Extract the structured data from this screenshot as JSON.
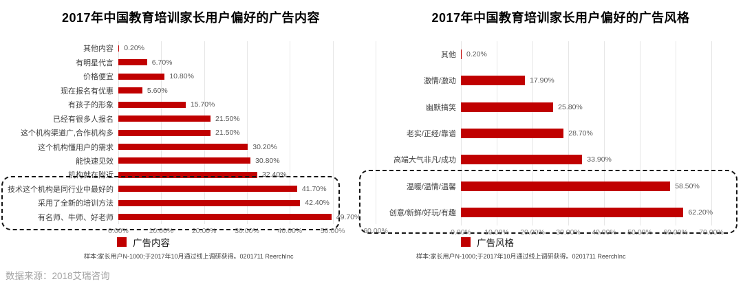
{
  "source_note": "数据来源：2018艾瑞咨询",
  "colors": {
    "bar": "#c00000",
    "gridline": "#e6e6e6",
    "highlight_border": "#141414"
  },
  "chart_data": [
    {
      "type": "bar",
      "orientation": "horizontal",
      "title": "2017年中国教育培训家长用户偏好的广告内容",
      "legend": "广告内容",
      "categories": [
        "其他内容",
        "有明星代言",
        "价格便宜",
        "现在报名有优惠",
        "有孩子的形象",
        "已经有很多人报名",
        "这个机构渠道广,合作机构多",
        "这个机构懂用户的需求",
        "能快速见效",
        "机构就在附近",
        "技术这个机构是同行业中最好的",
        "采用了全新的培训方法",
        "有名师、牛师、好老师"
      ],
      "values": [
        0.2,
        6.7,
        10.8,
        5.6,
        15.7,
        21.5,
        21.5,
        30.2,
        30.8,
        32.4,
        41.7,
        42.4,
        49.7
      ],
      "value_labels": [
        "0.20%",
        "6.70%",
        "10.80%",
        "5.60%",
        "15.70%",
        "21.50%",
        "21.50%",
        "30.20%",
        "30.80%",
        "32.40%",
        "41.70%",
        "42.40%",
        "49.70%"
      ],
      "xlim": [
        0,
        60
      ],
      "x_ticks": [
        "0.00%",
        "10.00%",
        "20.00%",
        "30.00%",
        "40.00%",
        "50.00%",
        "60.00%"
      ],
      "grid": "on",
      "legend_position": "bottom",
      "highlight_rows": [
        10,
        12
      ],
      "footnote": "样本:家长用户N-1000;于2017年10月通过线上调研获得。0201711 ReerchInc"
    },
    {
      "type": "bar",
      "orientation": "horizontal",
      "title": "2017年中国教育培训家长用户偏好的广告风格",
      "legend": "广告风格",
      "categories": [
        "其他",
        "激情/激动",
        "幽默搞笑",
        "老实/正经/靠谱",
        "高端大气非凡/成功",
        "温暖/温情/温馨",
        "创意/新鲜/好玩/有趣"
      ],
      "values": [
        0.2,
        17.9,
        25.8,
        28.7,
        33.9,
        58.5,
        62.2
      ],
      "value_labels": [
        "0.20%",
        "17.90%",
        "25.80%",
        "28.70%",
        "33.90%",
        "58.50%",
        "62.20%"
      ],
      "xlim": [
        0,
        70
      ],
      "x_ticks": [
        "0.00%",
        "10.00%",
        "20.00%",
        "30.00%",
        "40.00%",
        "50.00%",
        "60.00%",
        "70.00%"
      ],
      "grid": "on",
      "legend_position": "bottom",
      "highlight_rows": [
        5,
        6
      ],
      "footnote": "样本:家长用户N-1000;于2017年10月通过线上调研获得。0201711 ReerchInc"
    }
  ]
}
